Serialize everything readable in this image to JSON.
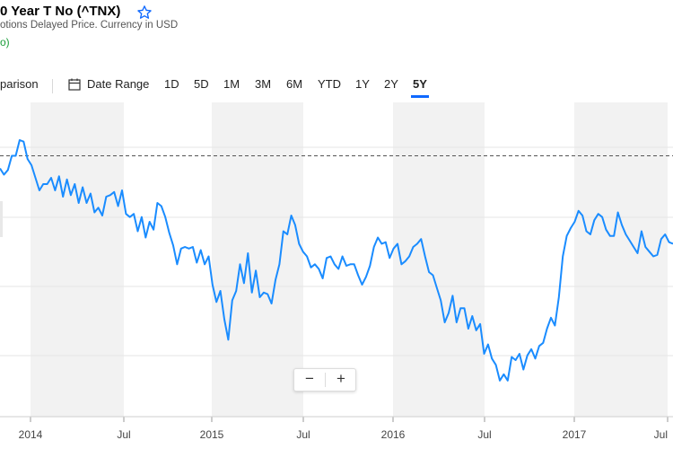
{
  "header": {
    "title": "0 Year T No (^TNX)",
    "subtitle": "otions Delayed Price. Currency in USD",
    "change": "o)"
  },
  "toolbar": {
    "comparison_label": "parison",
    "date_range_label": "Date Range",
    "ranges": [
      "1D",
      "5D",
      "1M",
      "3M",
      "6M",
      "YTD",
      "1Y",
      "2Y",
      "5Y"
    ],
    "active_range": "5Y"
  },
  "zoom": {
    "minus": "−",
    "plus": "+"
  },
  "colors": {
    "line": "#1a8cff",
    "band": "#f2f2f2",
    "accent": "#0f69ff",
    "positive": "#1b9e3a"
  },
  "chart_data": {
    "type": "line",
    "x_tick_labels": [
      "2014",
      "Jul",
      "2015",
      "Jul",
      "2016",
      "Jul",
      "2017",
      "Jul"
    ],
    "reference_line": {
      "style": "dashed",
      "value": 2.86
    },
    "ylim": [
      1.2,
      3.2
    ],
    "grid": true,
    "series": [
      {
        "values": [
          2.78,
          2.74,
          2.77,
          2.86,
          2.86,
          2.96,
          2.95,
          2.84,
          2.8,
          2.72,
          2.64,
          2.68,
          2.68,
          2.72,
          2.64,
          2.73,
          2.6,
          2.71,
          2.61,
          2.68,
          2.56,
          2.66,
          2.56,
          2.62,
          2.5,
          2.53,
          2.48,
          2.6,
          2.61,
          2.63,
          2.54,
          2.64,
          2.49,
          2.47,
          2.49,
          2.38,
          2.47,
          2.34,
          2.44,
          2.39,
          2.56,
          2.54,
          2.47,
          2.37,
          2.29,
          2.17,
          2.27,
          2.28,
          2.27,
          2.28,
          2.18,
          2.26,
          2.17,
          2.22,
          2.04,
          1.93,
          2.0,
          1.82,
          1.69,
          1.94,
          2.0,
          2.17,
          2.05,
          2.24,
          1.99,
          2.13,
          1.96,
          1.99,
          1.98,
          1.92,
          2.07,
          2.17,
          2.38,
          2.36,
          2.48,
          2.42,
          2.3,
          2.25,
          2.22,
          2.15,
          2.17,
          2.14,
          2.08,
          2.21,
          2.22,
          2.17,
          2.14,
          2.22,
          2.16,
          2.17,
          2.17,
          2.1,
          2.04,
          2.09,
          2.16,
          2.28,
          2.34,
          2.3,
          2.31,
          2.21,
          2.27,
          2.3,
          2.17,
          2.19,
          2.22,
          2.28,
          2.3,
          2.33,
          2.22,
          2.12,
          2.1,
          2.02,
          1.94,
          1.8,
          1.86,
          1.97,
          1.8,
          1.89,
          1.89,
          1.76,
          1.84,
          1.75,
          1.79,
          1.6,
          1.66,
          1.57,
          1.53,
          1.43,
          1.47,
          1.43,
          1.58,
          1.56,
          1.6,
          1.5,
          1.59,
          1.63,
          1.57,
          1.65,
          1.67,
          1.76,
          1.83,
          1.78,
          1.96,
          2.22,
          2.35,
          2.4,
          2.44,
          2.51,
          2.48,
          2.38,
          2.36,
          2.45,
          2.49,
          2.47,
          2.39,
          2.35,
          2.35,
          2.5,
          2.42,
          2.36,
          2.32,
          2.28,
          2.24,
          2.38,
          2.28,
          2.25,
          2.22,
          2.23,
          2.33,
          2.36,
          2.31,
          2.3
        ]
      }
    ]
  }
}
